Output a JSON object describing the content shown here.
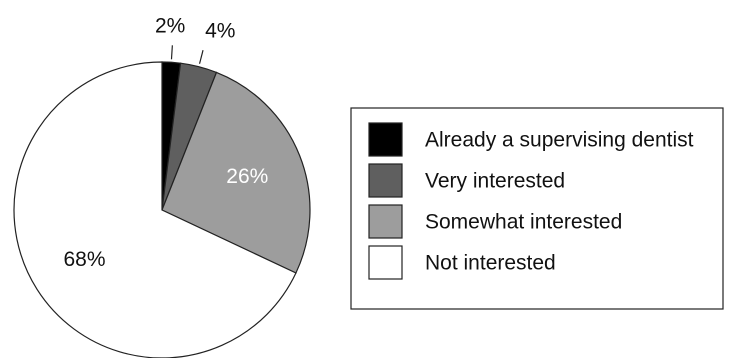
{
  "chart_data": {
    "type": "pie",
    "categories": [
      "Already a supervising dentist",
      "Very interested",
      "Somewhat interested",
      "Not interested"
    ],
    "values": [
      2,
      4,
      26,
      68
    ],
    "labels": [
      "2%",
      "4%",
      "26%",
      "68%"
    ],
    "colors": [
      "#000000",
      "#5f5f5f",
      "#9d9d9d",
      "#ffffff"
    ],
    "title": "",
    "legend_position": "right"
  }
}
